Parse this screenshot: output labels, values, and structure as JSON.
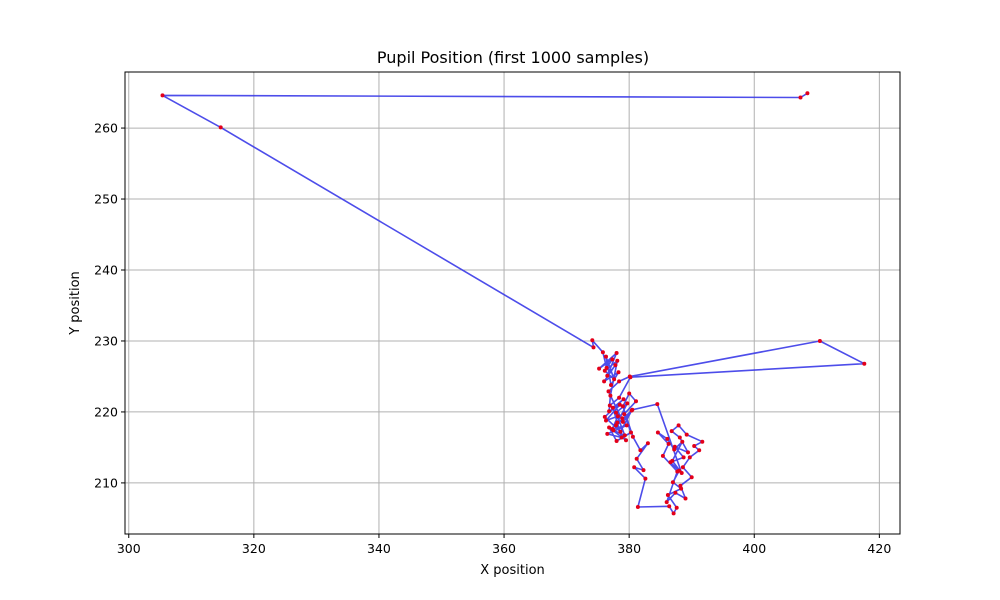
{
  "chart_data": {
    "type": "line",
    "title": "Pupil Position (first 1000 samples)",
    "xlabel": "X position",
    "ylabel": "Y position",
    "xlim": [
      299.4,
      423.3
    ],
    "ylim": [
      202.8,
      267.9
    ],
    "xticks": [
      300,
      320,
      340,
      360,
      380,
      400,
      420
    ],
    "yticks": [
      210,
      220,
      230,
      240,
      250,
      260
    ],
    "grid": true,
    "line_color": "#3a3ae8",
    "marker_color": "#e3001b",
    "series": [
      {
        "values": [
          {
            "x": 408.5,
            "y": 264.9
          },
          {
            "x": 407.4,
            "y": 264.3
          },
          {
            "x": 305.4,
            "y": 264.6
          },
          {
            "x": 314.7,
            "y": 260.1
          },
          {
            "x": 374.3,
            "y": 229.1
          },
          {
            "x": 374.1,
            "y": 230.1
          },
          {
            "x": 375.8,
            "y": 228.4
          },
          {
            "x": 376.4,
            "y": 226.2
          },
          {
            "x": 377.3,
            "y": 227.4
          },
          {
            "x": 375.2,
            "y": 226.1
          },
          {
            "x": 378.0,
            "y": 228.3
          },
          {
            "x": 376.5,
            "y": 225.1
          },
          {
            "x": 377.8,
            "y": 226.6
          },
          {
            "x": 376.0,
            "y": 224.3
          },
          {
            "x": 378.3,
            "y": 225.6
          },
          {
            "x": 377.1,
            "y": 223.8
          },
          {
            "x": 376.3,
            "y": 227.8
          },
          {
            "x": 377.6,
            "y": 224.6
          },
          {
            "x": 376.1,
            "y": 225.8
          },
          {
            "x": 378.1,
            "y": 227.2
          },
          {
            "x": 377.0,
            "y": 222.3
          },
          {
            "x": 376.8,
            "y": 220.1
          },
          {
            "x": 378.5,
            "y": 221.0
          },
          {
            "x": 376.3,
            "y": 218.8
          },
          {
            "x": 378.2,
            "y": 219.4
          },
          {
            "x": 377.3,
            "y": 217.6
          },
          {
            "x": 379.6,
            "y": 218.1
          },
          {
            "x": 376.5,
            "y": 216.9
          },
          {
            "x": 378.8,
            "y": 216.4
          },
          {
            "x": 377.4,
            "y": 220.6
          },
          {
            "x": 379.1,
            "y": 221.8
          },
          {
            "x": 376.1,
            "y": 219.3
          },
          {
            "x": 378.6,
            "y": 217.2
          },
          {
            "x": 380.4,
            "y": 220.2
          },
          {
            "x": 377.9,
            "y": 218.1
          },
          {
            "x": 379.5,
            "y": 216.0
          },
          {
            "x": 376.8,
            "y": 217.8
          },
          {
            "x": 378.0,
            "y": 215.9
          },
          {
            "x": 380.3,
            "y": 217.1
          },
          {
            "x": 379.2,
            "y": 219.7
          },
          {
            "x": 381.1,
            "y": 221.5
          },
          {
            "x": 380.0,
            "y": 222.6
          },
          {
            "x": 379.0,
            "y": 220.8
          },
          {
            "x": 380.6,
            "y": 216.5
          },
          {
            "x": 381.8,
            "y": 214.6
          },
          {
            "x": 383.0,
            "y": 215.6
          },
          {
            "x": 381.2,
            "y": 213.4
          },
          {
            "x": 382.3,
            "y": 211.8
          },
          {
            "x": 380.8,
            "y": 212.2
          },
          {
            "x": 382.6,
            "y": 210.6
          },
          {
            "x": 381.4,
            "y": 206.6
          },
          {
            "x": 386.4,
            "y": 206.7
          },
          {
            "x": 387.1,
            "y": 205.7
          },
          {
            "x": 387.6,
            "y": 206.5
          },
          {
            "x": 386.2,
            "y": 208.3
          },
          {
            "x": 388.3,
            "y": 209.2
          },
          {
            "x": 387.0,
            "y": 210.1
          },
          {
            "x": 388.0,
            "y": 211.7
          },
          {
            "x": 386.6,
            "y": 212.9
          },
          {
            "x": 388.7,
            "y": 213.6
          },
          {
            "x": 387.3,
            "y": 215.1
          },
          {
            "x": 389.4,
            "y": 214.3
          },
          {
            "x": 388.1,
            "y": 216.4
          },
          {
            "x": 386.8,
            "y": 217.3
          },
          {
            "x": 387.9,
            "y": 218.1
          },
          {
            "x": 389.2,
            "y": 216.8
          },
          {
            "x": 391.7,
            "y": 215.8
          },
          {
            "x": 390.4,
            "y": 215.2
          },
          {
            "x": 391.2,
            "y": 214.6
          },
          {
            "x": 389.7,
            "y": 213.6
          },
          {
            "x": 388.6,
            "y": 212.2
          },
          {
            "x": 390.0,
            "y": 210.8
          },
          {
            "x": 388.2,
            "y": 209.6
          },
          {
            "x": 389.0,
            "y": 207.8
          },
          {
            "x": 387.4,
            "y": 208.6
          },
          {
            "x": 386.0,
            "y": 207.3
          },
          {
            "x": 387.7,
            "y": 211.6
          },
          {
            "x": 385.4,
            "y": 213.8
          },
          {
            "x": 386.3,
            "y": 215.5
          },
          {
            "x": 384.6,
            "y": 217.1
          },
          {
            "x": 386.1,
            "y": 216.2
          },
          {
            "x": 387.2,
            "y": 214.7
          },
          {
            "x": 388.5,
            "y": 215.8
          },
          {
            "x": 386.9,
            "y": 213.1
          },
          {
            "x": 388.4,
            "y": 211.4
          },
          {
            "x": 384.5,
            "y": 221.1
          },
          {
            "x": 380.5,
            "y": 220.3
          },
          {
            "x": 379.0,
            "y": 218.6
          },
          {
            "x": 376.7,
            "y": 222.9
          },
          {
            "x": 378.4,
            "y": 224.3
          },
          {
            "x": 380.1,
            "y": 225.0
          },
          {
            "x": 410.5,
            "y": 230.0
          },
          {
            "x": 417.6,
            "y": 226.8
          },
          {
            "x": 380.2,
            "y": 224.9
          },
          {
            "x": 378.4,
            "y": 222.0
          },
          {
            "x": 376.9,
            "y": 220.9
          },
          {
            "x": 378.9,
            "y": 219.1
          },
          {
            "x": 377.5,
            "y": 217.4
          },
          {
            "x": 379.3,
            "y": 216.7
          },
          {
            "x": 377.9,
            "y": 219.9
          },
          {
            "x": 379.7,
            "y": 221.2
          },
          {
            "x": 378.1,
            "y": 218.5
          }
        ]
      }
    ]
  }
}
